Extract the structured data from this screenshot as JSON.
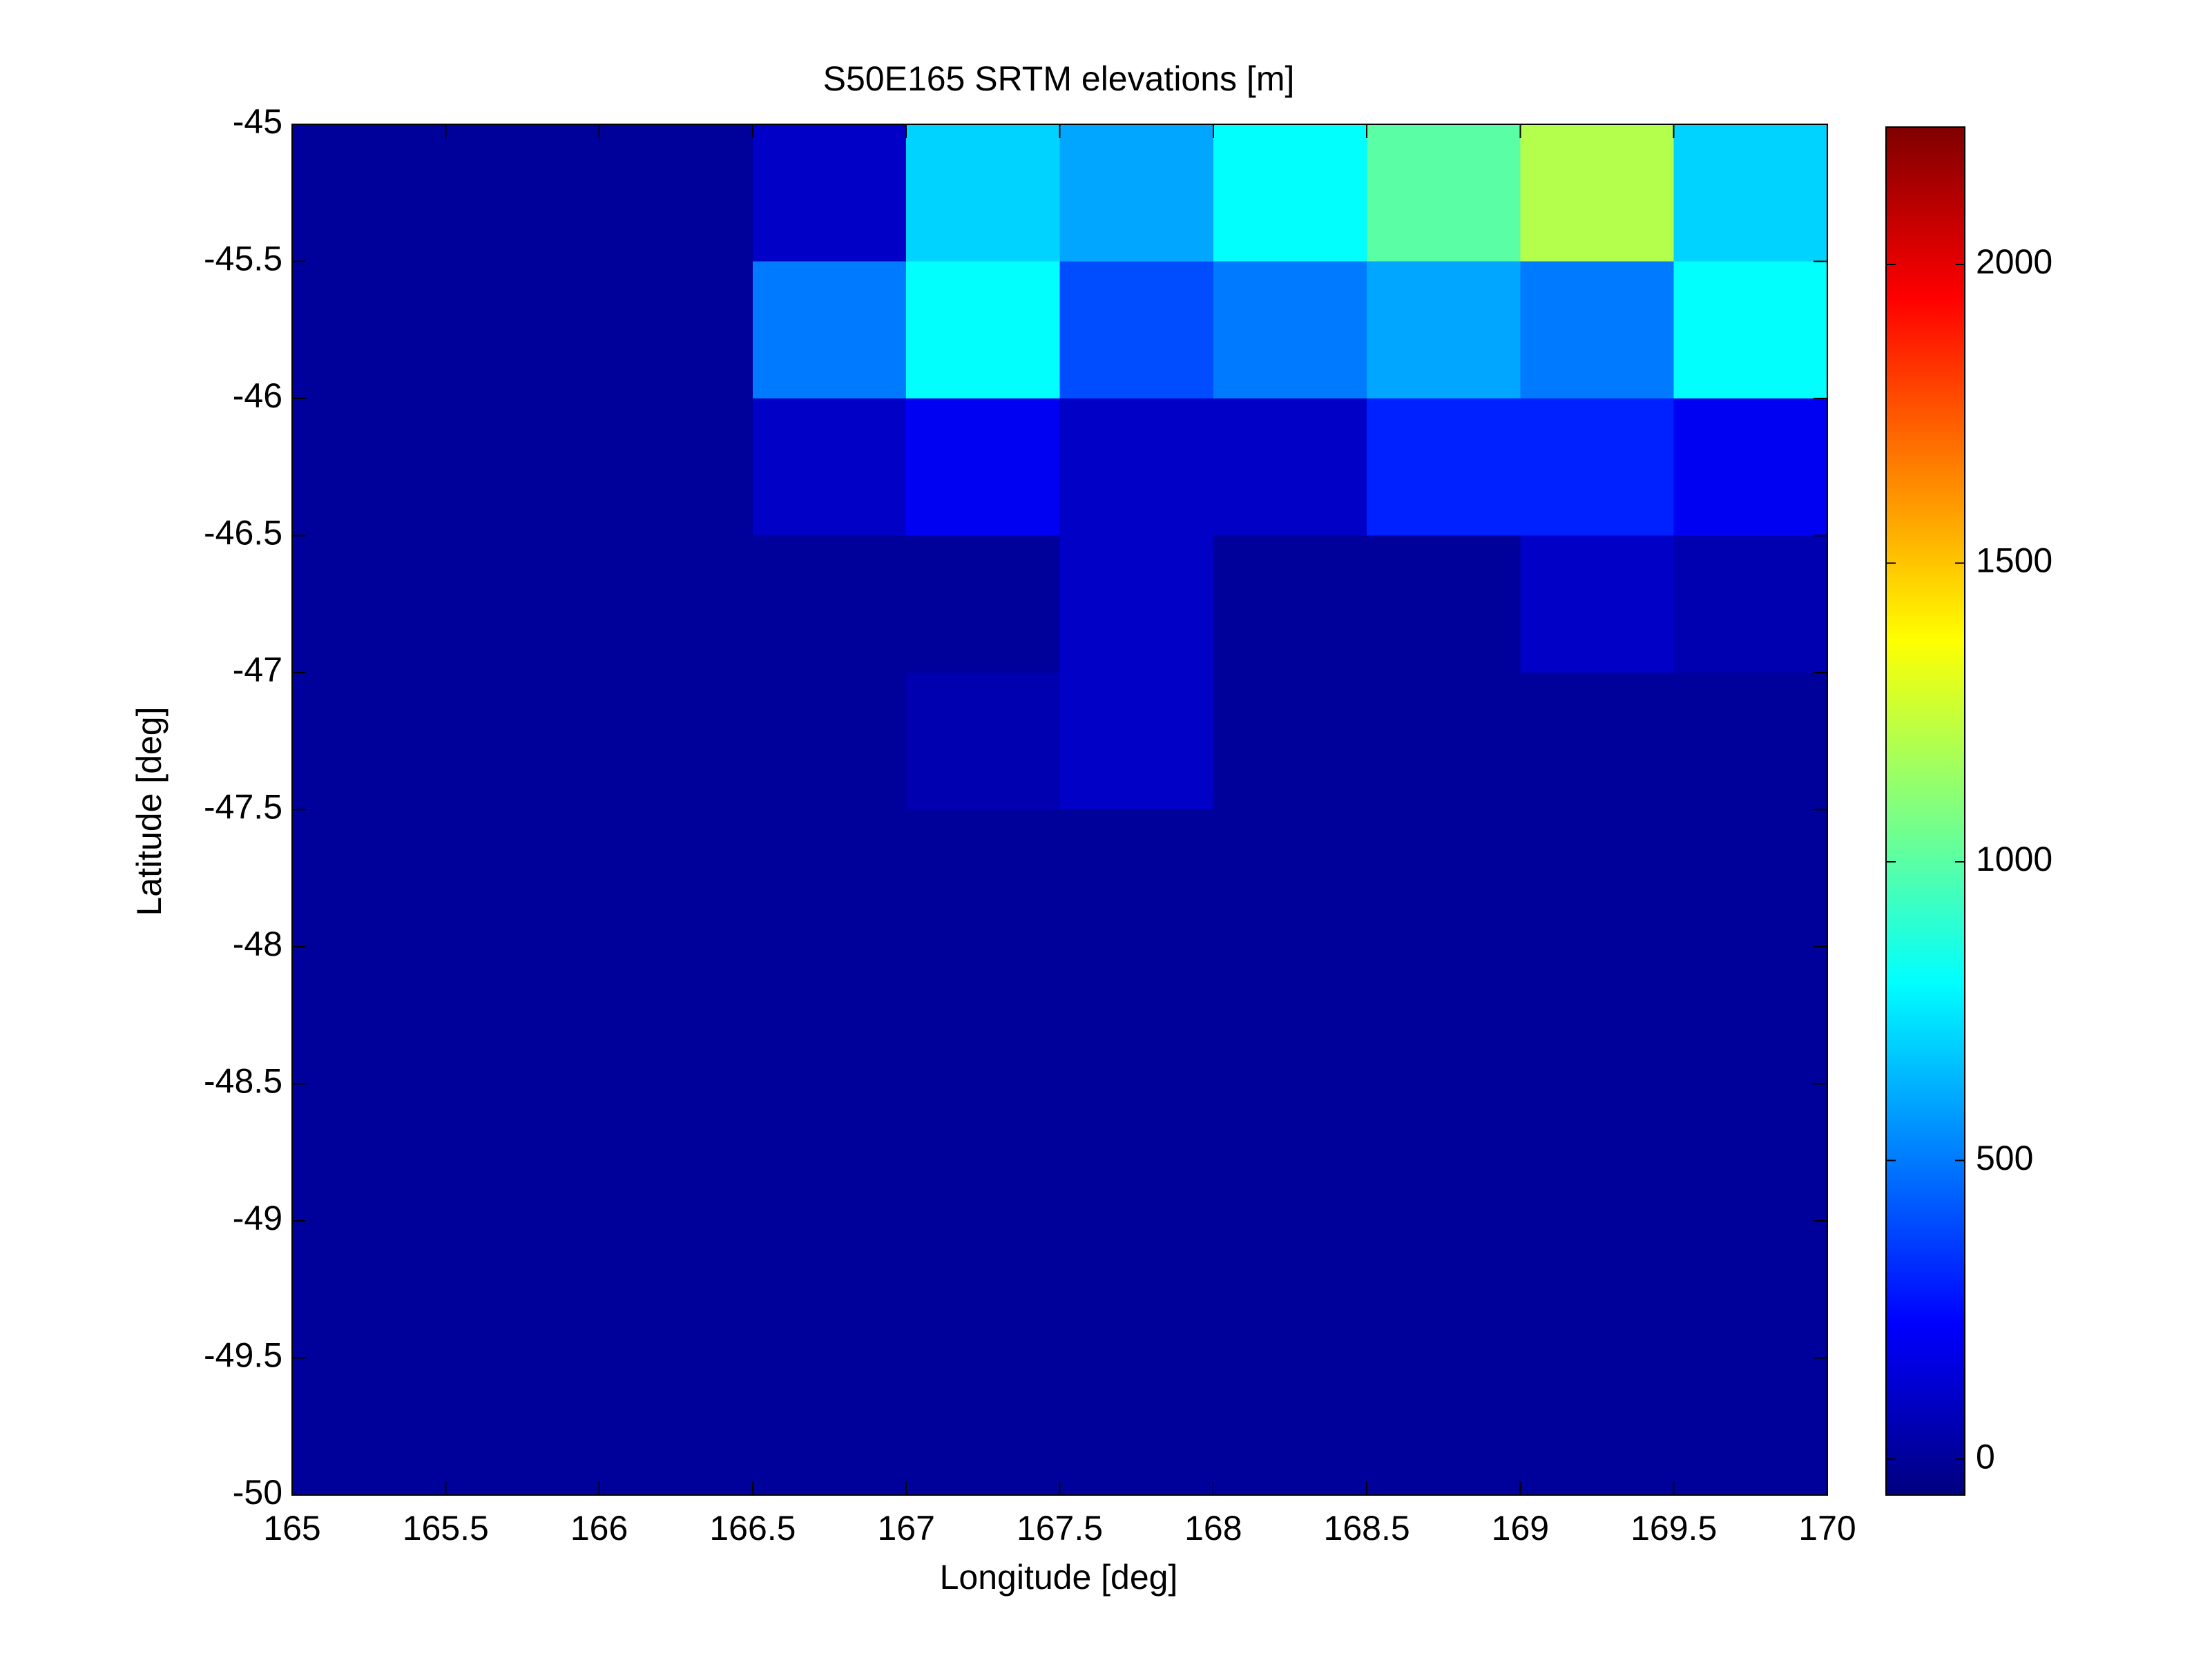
{
  "chart_data": {
    "type": "heatmap",
    "title": "S50E165 SRTM elevations [m]",
    "x_label": "Longitude [deg]",
    "y_label": "Latitude [deg]",
    "colormap": "jet",
    "xlim": [
      165,
      170
    ],
    "ylim": [
      -50,
      -45
    ],
    "xticks": [
      165,
      165.5,
      166,
      166.5,
      167,
      167.5,
      168,
      168.5,
      169,
      169.5,
      170
    ],
    "yticks": [
      -45,
      -45.5,
      -46,
      -46.5,
      -47,
      -47.5,
      -48,
      -48.5,
      -49,
      -49.5,
      -50
    ],
    "zlim": [
      -60,
      2230
    ],
    "zticks": [
      0,
      500,
      1000,
      1500,
      2000
    ],
    "values": [
      [
        0,
        0,
        0,
        100,
        700,
        600,
        800,
        1000,
        1200,
        700
      ],
      [
        0,
        0,
        0,
        500,
        800,
        400,
        500,
        600,
        500,
        800
      ],
      [
        0,
        0,
        0,
        100,
        200,
        100,
        100,
        300,
        300,
        200
      ],
      [
        0,
        0,
        0,
        0,
        0,
        100,
        0,
        0,
        100,
        50
      ],
      [
        0,
        0,
        0,
        0,
        50,
        100,
        0,
        0,
        0,
        0
      ],
      [
        0,
        0,
        0,
        0,
        0,
        0,
        0,
        0,
        0,
        0
      ],
      [
        0,
        0,
        0,
        0,
        0,
        0,
        0,
        0,
        0,
        0
      ],
      [
        0,
        0,
        0,
        0,
        0,
        0,
        0,
        0,
        0,
        0
      ],
      [
        0,
        0,
        0,
        0,
        0,
        0,
        0,
        0,
        0,
        0
      ],
      [
        0,
        0,
        0,
        0,
        0,
        0,
        0,
        0,
        0,
        0
      ]
    ]
  }
}
